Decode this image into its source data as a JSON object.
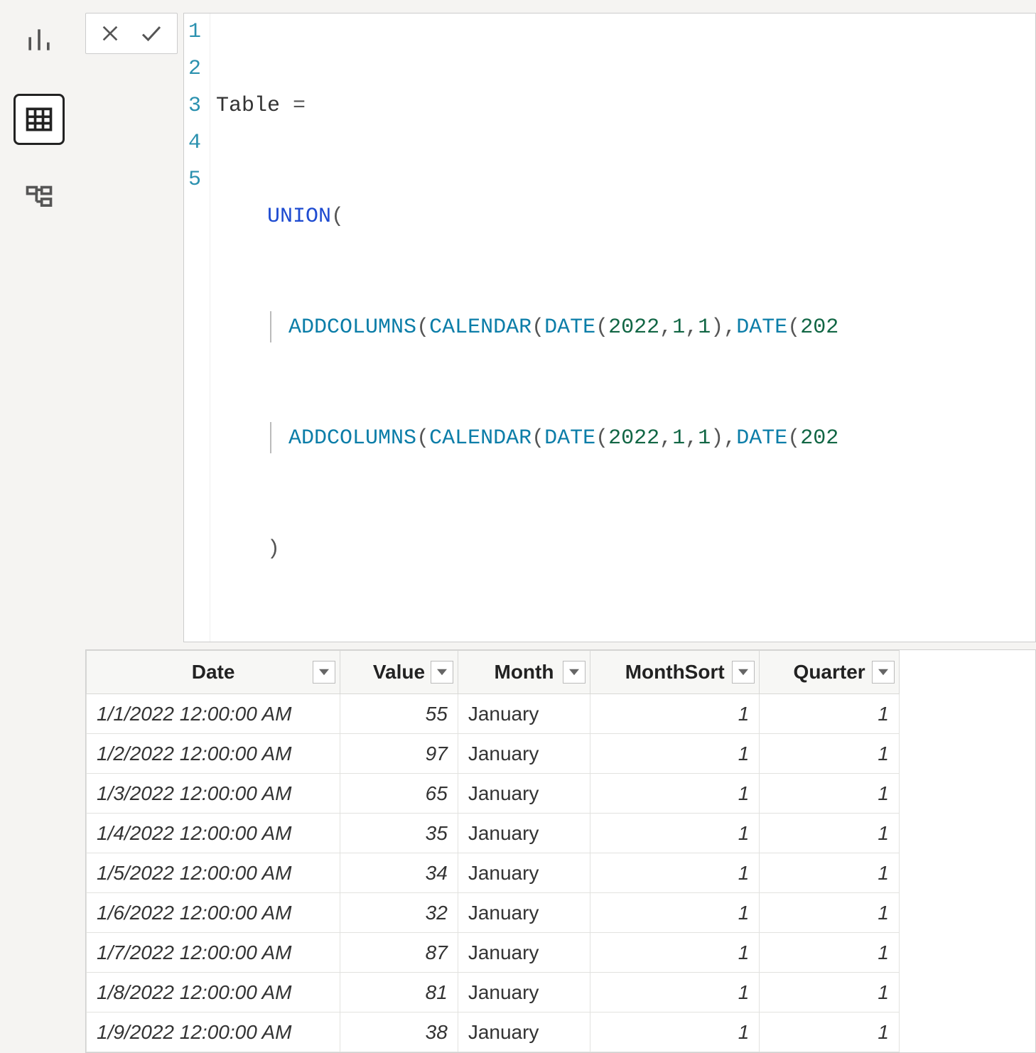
{
  "nav": {
    "items": [
      {
        "name": "report-view-icon",
        "active": false
      },
      {
        "name": "data-view-icon",
        "active": true
      },
      {
        "name": "model-view-icon",
        "active": false
      }
    ]
  },
  "formula": {
    "lines": [
      "1",
      "2",
      "3",
      "4",
      "5"
    ],
    "assign_left": "Table ",
    "assign_eq": "=",
    "union": "UNION",
    "open_paren": "(",
    "addcolumns": "ADDCOLUMNS",
    "calendar": "CALENDAR",
    "date_fn": "DATE",
    "y": "2022",
    "m": "1",
    "d": "1",
    "close_paren": ")",
    "comma": ",",
    "truncated_date_prefix": "202"
  },
  "table": {
    "columns": [
      {
        "label": "Date",
        "key": "date",
        "class": "col-date"
      },
      {
        "label": "Value",
        "key": "value",
        "class": "col-value"
      },
      {
        "label": "Month",
        "key": "month",
        "class": "col-month"
      },
      {
        "label": "MonthSort",
        "key": "monthsort",
        "class": "col-monthsort"
      },
      {
        "label": "Quarter",
        "key": "quarter",
        "class": "col-quarter"
      }
    ],
    "rows": [
      {
        "date": "1/1/2022 12:00:00 AM",
        "value": "55",
        "month": "January",
        "monthsort": "1",
        "quarter": "1"
      },
      {
        "date": "1/2/2022 12:00:00 AM",
        "value": "97",
        "month": "January",
        "monthsort": "1",
        "quarter": "1"
      },
      {
        "date": "1/3/2022 12:00:00 AM",
        "value": "65",
        "month": "January",
        "monthsort": "1",
        "quarter": "1"
      },
      {
        "date": "1/4/2022 12:00:00 AM",
        "value": "35",
        "month": "January",
        "monthsort": "1",
        "quarter": "1"
      },
      {
        "date": "1/5/2022 12:00:00 AM",
        "value": "34",
        "month": "January",
        "monthsort": "1",
        "quarter": "1"
      },
      {
        "date": "1/6/2022 12:00:00 AM",
        "value": "32",
        "month": "January",
        "monthsort": "1",
        "quarter": "1"
      },
      {
        "date": "1/7/2022 12:00:00 AM",
        "value": "87",
        "month": "January",
        "monthsort": "1",
        "quarter": "1"
      },
      {
        "date": "1/8/2022 12:00:00 AM",
        "value": "81",
        "month": "January",
        "monthsort": "1",
        "quarter": "1"
      },
      {
        "date": "1/9/2022 12:00:00 AM",
        "value": "38",
        "month": "January",
        "monthsort": "1",
        "quarter": "1"
      }
    ]
  },
  "colors": {
    "bg": "#f5f4f2",
    "border": "#d0d0d0",
    "code_keyword": "#1e4bd1",
    "code_func": "#0b7da8",
    "code_number": "#116644",
    "gutter_num": "#2b91af"
  }
}
